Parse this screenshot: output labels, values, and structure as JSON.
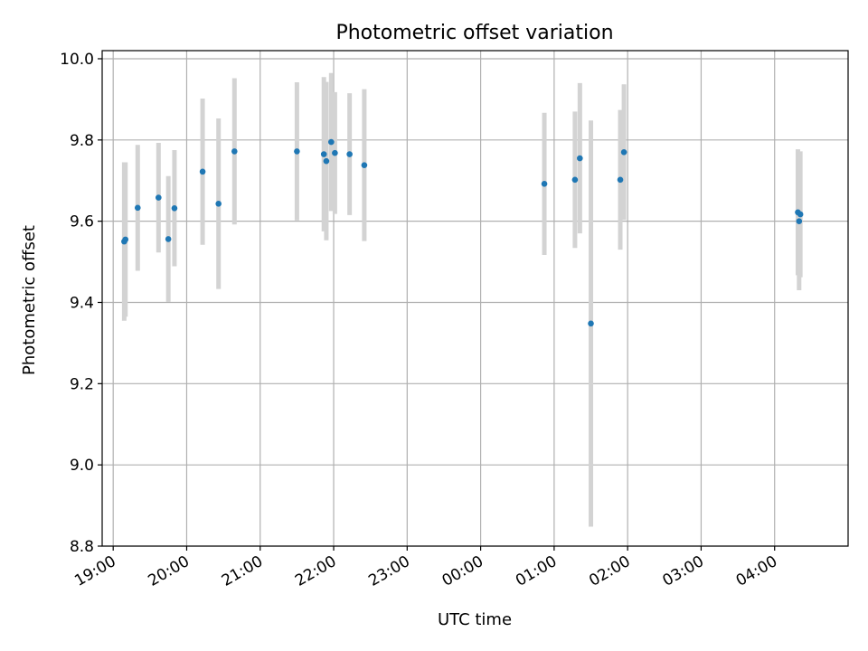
{
  "chart_data": {
    "type": "scatter",
    "title": "Photometric offset variation",
    "xlabel": "UTC time",
    "ylabel": "Photometric offset",
    "x_ticks": [
      "19:00",
      "20:00",
      "21:00",
      "22:00",
      "23:00",
      "00:00",
      "01:00",
      "02:00",
      "03:00",
      "04:00"
    ],
    "xlim": [
      "18:51",
      "05:00"
    ],
    "ylim": [
      8.8,
      10.02
    ],
    "y_ticks": [
      8.8,
      9.0,
      9.2,
      9.4,
      9.6,
      9.8,
      10.0
    ],
    "grid": true,
    "colors": {
      "point": "#1f77b4",
      "error_bar": "#d3d3d3",
      "grid": "#b0b0b0"
    },
    "series": [
      {
        "points": [
          {
            "x": "19:09",
            "y": 9.55,
            "yerr": 0.195
          },
          {
            "x": "19:10",
            "y": 9.555,
            "yerr": 0.19
          },
          {
            "x": "19:20",
            "y": 9.633,
            "yerr": 0.155
          },
          {
            "x": "19:37",
            "y": 9.658,
            "yerr": 0.135
          },
          {
            "x": "19:45",
            "y": 9.556,
            "yerr": 0.155
          },
          {
            "x": "19:50",
            "y": 9.632,
            "yerr": 0.143
          },
          {
            "x": "20:13",
            "y": 9.722,
            "yerr": 0.18
          },
          {
            "x": "20:26",
            "y": 9.643,
            "yerr": 0.21
          },
          {
            "x": "20:39",
            "y": 9.772,
            "yerr": 0.18
          },
          {
            "x": "21:30",
            "y": 9.772,
            "yerr": 0.17
          },
          {
            "x": "21:52",
            "y": 9.765,
            "yerr": 0.19
          },
          {
            "x": "21:54",
            "y": 9.748,
            "yerr": 0.195
          },
          {
            "x": "21:58",
            "y": 9.795,
            "yerr": 0.17
          },
          {
            "x": "22:01",
            "y": 9.768,
            "yerr": 0.15
          },
          {
            "x": "22:13",
            "y": 9.765,
            "yerr": 0.15
          },
          {
            "x": "22:25",
            "y": 9.738,
            "yerr": 0.187
          },
          {
            "x": "00:52",
            "y": 9.692,
            "yerr": 0.175
          },
          {
            "x": "01:17",
            "y": 9.702,
            "yerr": 0.168
          },
          {
            "x": "01:21",
            "y": 9.755,
            "yerr": 0.185
          },
          {
            "x": "01:30",
            "y": 9.348,
            "yerr": 0.5
          },
          {
            "x": "01:54",
            "y": 9.702,
            "yerr": 0.172
          },
          {
            "x": "01:57",
            "y": 9.77,
            "yerr": 0.167
          },
          {
            "x": "04:19",
            "y": 9.622,
            "yerr": 0.155
          },
          {
            "x": "04:20",
            "y": 9.6,
            "yerr": 0.17
          },
          {
            "x": "04:21",
            "y": 9.617,
            "yerr": 0.155
          }
        ]
      }
    ]
  }
}
